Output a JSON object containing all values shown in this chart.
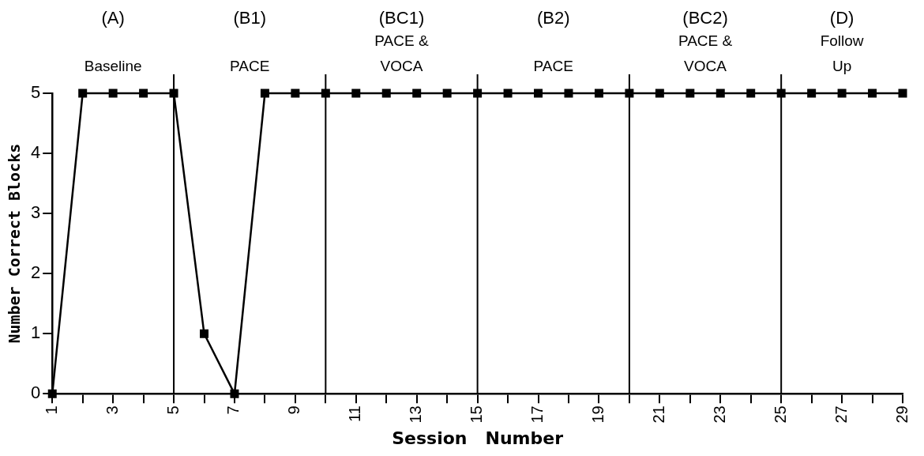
{
  "chart_data": {
    "type": "line",
    "xlabel": "Session   Number",
    "ylabel": "Number Correct Blocks",
    "x": [
      1,
      2,
      3,
      4,
      5,
      6,
      7,
      8,
      9,
      10,
      11,
      12,
      13,
      14,
      15,
      16,
      17,
      18,
      19,
      20,
      21,
      22,
      23,
      24,
      25,
      26,
      27,
      28,
      29
    ],
    "series": [
      {
        "color": "#000000",
        "values": [
          0,
          5,
          5,
          5,
          5,
          1,
          0,
          5,
          5,
          5,
          5,
          5,
          5,
          5,
          5,
          5,
          5,
          5,
          5,
          5,
          5,
          5,
          5,
          5,
          5,
          5,
          5,
          5,
          5
        ]
      }
    ],
    "xlim": [
      1,
      29
    ],
    "xticks": [
      1,
      {
        "value": 2,
        "label": null
      },
      3,
      {
        "value": 4,
        "label": null
      },
      5,
      {
        "value": 6,
        "label": null
      },
      7,
      {
        "value": 8,
        "label": null
      },
      9,
      {
        "value": 10,
        "label": null
      },
      11,
      {
        "value": 12,
        "label": null
      },
      13,
      {
        "value": 14,
        "label": null
      },
      15,
      {
        "value": 16,
        "label": null
      },
      17,
      {
        "value": 18,
        "label": null
      },
      19,
      {
        "value": 20,
        "label": null
      },
      21,
      {
        "value": 22,
        "label": null
      },
      23,
      {
        "value": 24,
        "label": null
      },
      25,
      {
        "value": 26,
        "label": null
      },
      27,
      {
        "value": 28,
        "label": null
      },
      29
    ],
    "ylim": [
      0,
      5
    ],
    "yticks": [
      0,
      1,
      2,
      3,
      4,
      5
    ],
    "ref_lines": [
      {
        "axis": "x",
        "value": 5,
        "color": "#000000"
      },
      {
        "axis": "x",
        "value": 10,
        "color": "#000000"
      },
      {
        "axis": "x",
        "value": 15,
        "color": "#000000"
      },
      {
        "axis": "x",
        "value": 20,
        "color": "#000000"
      },
      {
        "axis": "x",
        "value": 25,
        "color": "#000000"
      }
    ],
    "annotations": [
      "(A)\nBaseline",
      "(B1)\nPACE",
      "(BC1)\nPACE &\nVOCA",
      "(B2)\nPACE",
      "(BC2)\nPACE &\nVOCA",
      "(D)\nFollow\nUp"
    ],
    "grid": false,
    "legend": false,
    "marker": "square",
    "line_style": "solid"
  }
}
